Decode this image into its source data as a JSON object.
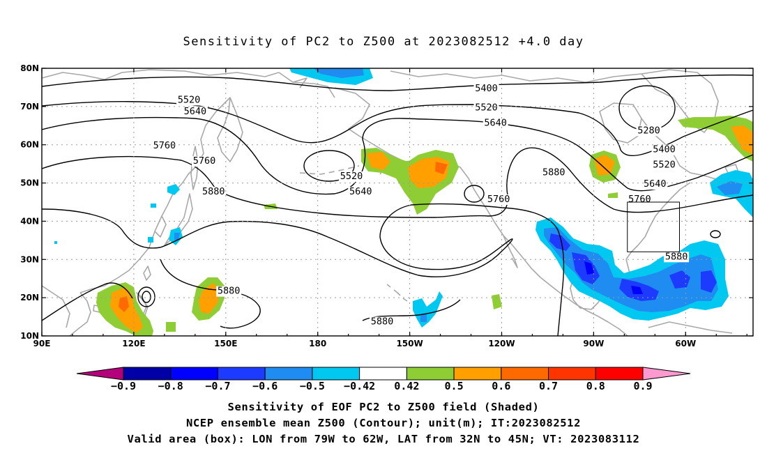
{
  "title": "Sensitivity of PC2 to Z500 at 2023082512 +4.0 day",
  "map": {
    "lat_labels": [
      "80N",
      "70N",
      "60N",
      "50N",
      "40N",
      "30N",
      "20N",
      "10N"
    ],
    "lon_labels": [
      "90E",
      "120E",
      "150E",
      "180",
      "150W",
      "120W",
      "90W",
      "60W"
    ],
    "lat_range": [
      10,
      80
    ],
    "lon_range_east": [
      90,
      322
    ],
    "contour_levels": [
      5280,
      5400,
      5520,
      5640,
      5760,
      5880
    ],
    "contour_labels": [
      {
        "text": "5520",
        "lon": 138,
        "lat": 71
      },
      {
        "text": "5640",
        "lon": 140,
        "lat": 68
      },
      {
        "text": "5760",
        "lon": 130,
        "lat": 59
      },
      {
        "text": "5760",
        "lon": 143,
        "lat": 55
      },
      {
        "text": "5880",
        "lon": 146,
        "lat": 47
      },
      {
        "text": "5880",
        "lon": 151,
        "lat": 21
      },
      {
        "text": "5400",
        "lon": 235,
        "lat": 74
      },
      {
        "text": "5520",
        "lon": 235,
        "lat": 69
      },
      {
        "text": "5640",
        "lon": 238,
        "lat": 65
      },
      {
        "text": "5520",
        "lon": 191,
        "lat": 51
      },
      {
        "text": "5640",
        "lon": 194,
        "lat": 47
      },
      {
        "text": "5760",
        "lon": 239,
        "lat": 45
      },
      {
        "text": "5880",
        "lon": 257,
        "lat": 52
      },
      {
        "text": "5280",
        "lon": 288,
        "lat": 63
      },
      {
        "text": "5400",
        "lon": 293,
        "lat": 58
      },
      {
        "text": "5520",
        "lon": 293,
        "lat": 54
      },
      {
        "text": "5640",
        "lon": 290,
        "lat": 49
      },
      {
        "text": "5760",
        "lon": 285,
        "lat": 45
      },
      {
        "text": "5880",
        "lon": 297,
        "lat": 30
      },
      {
        "text": "5880",
        "lon": 201,
        "lat": 13
      }
    ],
    "valid_box": {
      "lon_w": -79,
      "lon_e": -62,
      "lat_s": 32,
      "lat_n": 45
    }
  },
  "colorbar": {
    "labels": [
      "-0.9",
      "-0.8",
      "-0.7",
      "-0.6",
      "-0.5",
      "-0.42",
      "0.42",
      "0.5",
      "0.6",
      "0.7",
      "0.8",
      "0.9"
    ],
    "colors": [
      "#0000a6",
      "#0000ff",
      "#1d3bff",
      "#1e8cf0",
      "#00c8f0",
      "#ffffff",
      "#8fcd34",
      "#ff9f00",
      "#ff6a00",
      "#ff3500",
      "#ff0000"
    ],
    "low_extend_color": "#b4007a",
    "high_extend_color": "#ff9ad0"
  },
  "captions": {
    "line1": "Sensitivity of EOF PC2 to Z500 field (Shaded)",
    "line2": "NCEP ensemble mean Z500 (Contour); unit(m); IT:2023082512",
    "line3": "Valid area (box): LON from 79W to 62W, LAT from 32N to 45N; VT: 2023083112"
  }
}
